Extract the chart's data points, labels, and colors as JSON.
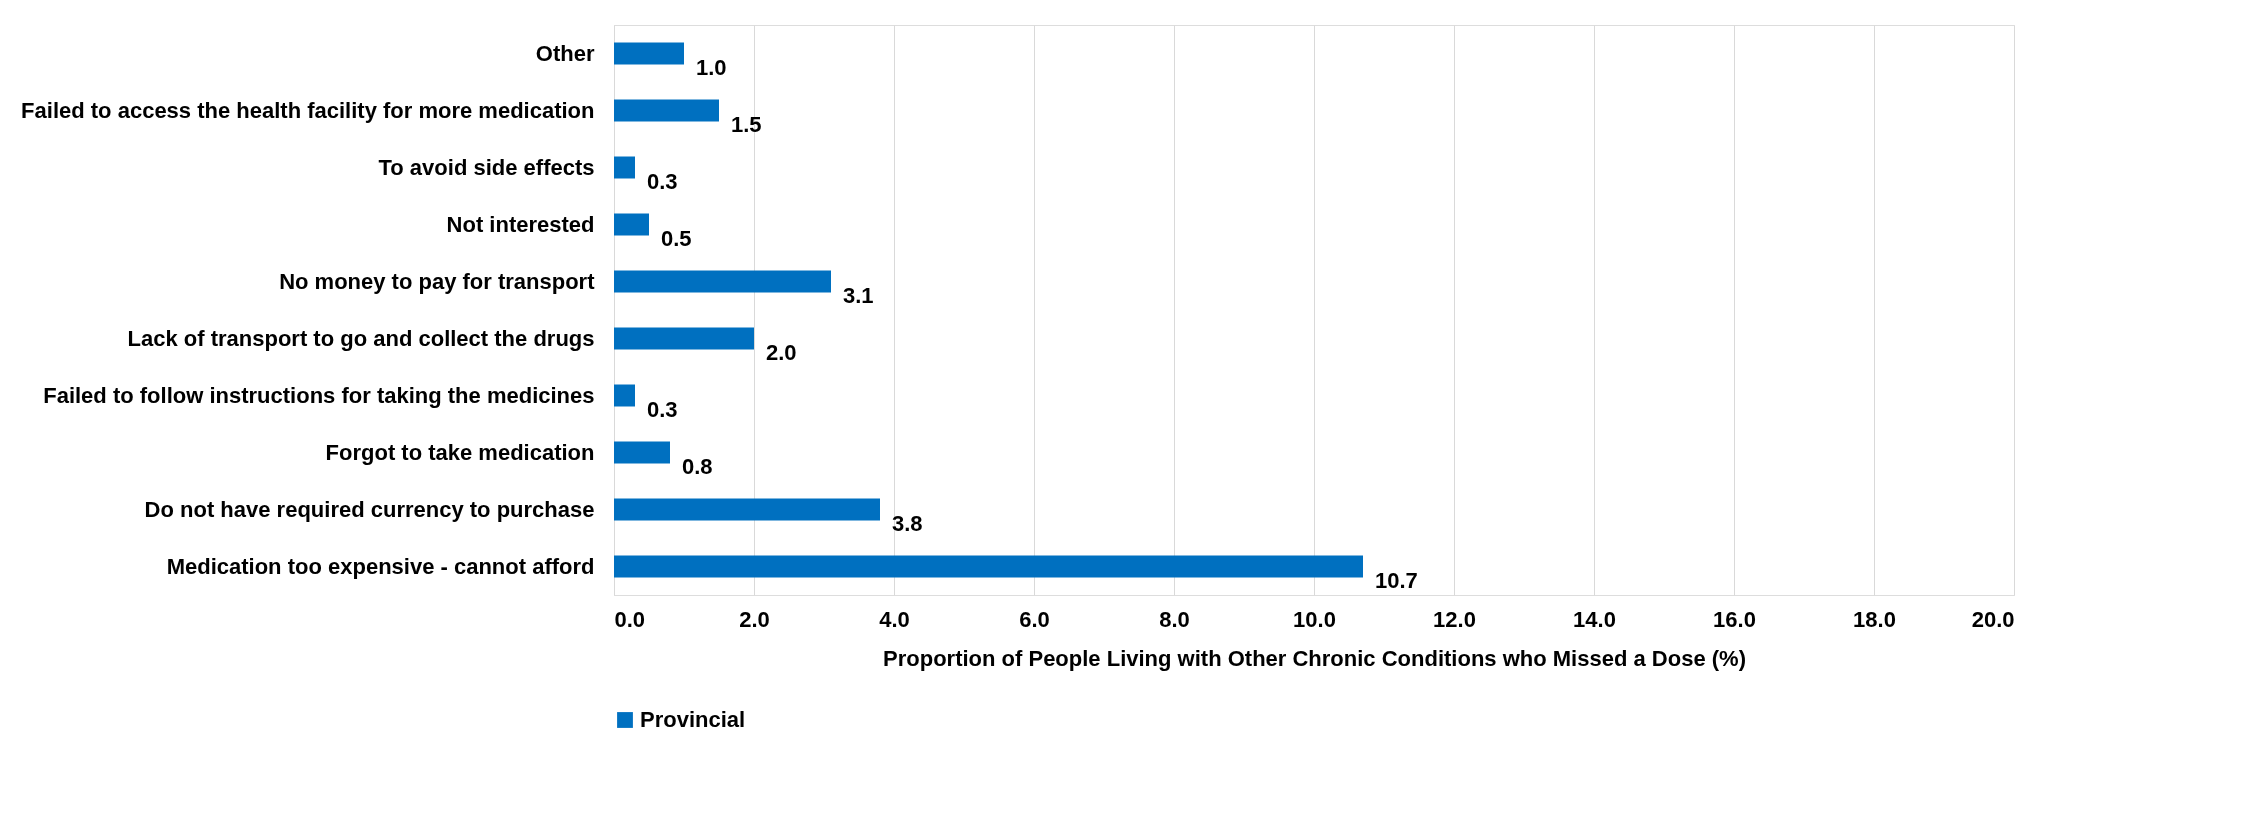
{
  "chart_data": {
    "type": "bar",
    "orientation": "horizontal",
    "categories": [
      "Other",
      "Failed to access the health facility for more medication",
      "To avoid side effects",
      "Not interested",
      "No money to pay for transport",
      "Lack of transport to go and collect the drugs",
      "Failed to follow instructions for taking the medicines",
      "Forgot to take medication",
      "Do not have required currency to purchase",
      "Medication too expensive - cannot afford"
    ],
    "series": [
      {
        "name": "Provincial",
        "color": "#0070c0",
        "values": [
          1.0,
          1.5,
          0.3,
          0.5,
          3.1,
          2.0,
          0.3,
          0.8,
          3.8,
          10.7
        ],
        "value_labels": [
          "1.0",
          "1.5",
          "0.3",
          "0.5",
          "3.1",
          "2.0",
          "0.3",
          "0.8",
          "3.8",
          "10.7"
        ]
      }
    ],
    "xlabel": "Proportion of People Living with Other Chronic Conditions who Missed a Dose (%)",
    "xlim": [
      0,
      20
    ],
    "xticks": [
      {
        "value": 0,
        "label": "0.0"
      },
      {
        "value": 2,
        "label": "2.0"
      },
      {
        "value": 4,
        "label": "4.0"
      },
      {
        "value": 6,
        "label": "6.0"
      },
      {
        "value": 8,
        "label": "8.0"
      },
      {
        "value": 10,
        "label": "10.0"
      },
      {
        "value": 12,
        "label": "12.0"
      },
      {
        "value": 14,
        "label": "14.0"
      },
      {
        "value": 16,
        "label": "16.0"
      },
      {
        "value": 18,
        "label": "18.0"
      },
      {
        "value": 20,
        "label": "20.0"
      }
    ],
    "grid": "x",
    "legend": "bottom"
  }
}
